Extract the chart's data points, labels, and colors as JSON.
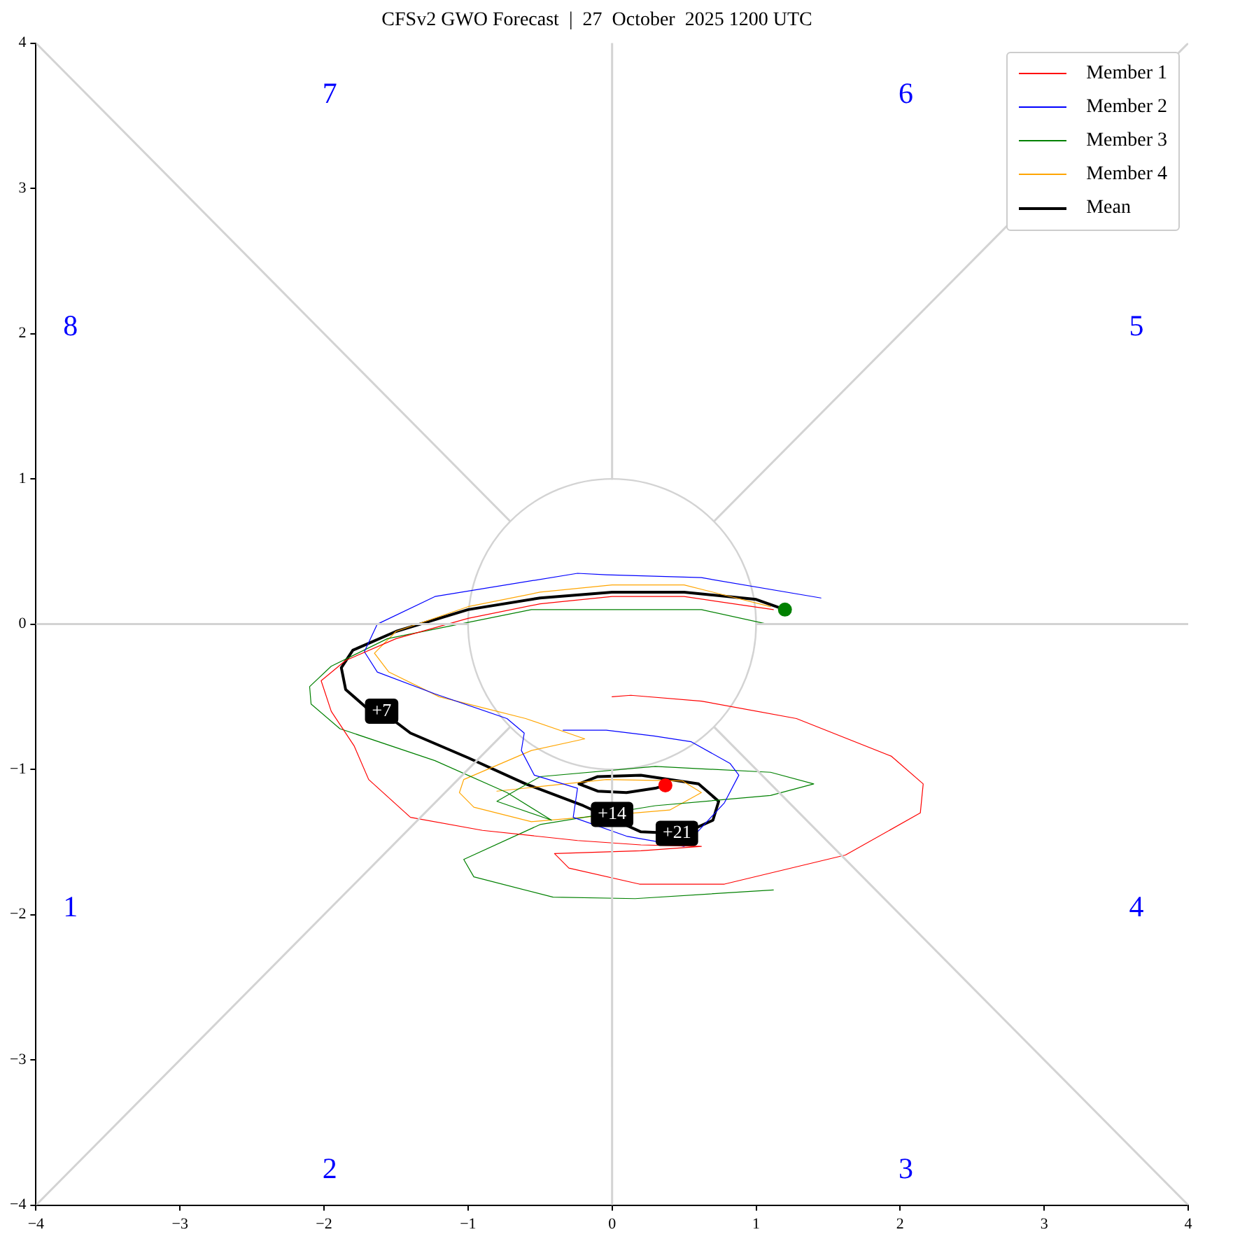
{
  "chart_data": {
    "type": "line",
    "title": "CFSv2 GWO Forecast  |  27  October  2025 1200 UTC",
    "xlim": [
      -4,
      4
    ],
    "ylim": [
      -4,
      4
    ],
    "xticks": [
      {
        "value": -4,
        "label": "−4"
      },
      {
        "value": -3,
        "label": "−3"
      },
      {
        "value": -2,
        "label": "−2"
      },
      {
        "value": -1,
        "label": "−1"
      },
      0,
      1,
      2,
      3,
      4
    ],
    "yticks": [
      {
        "value": -4,
        "label": "−4"
      },
      {
        "value": -3,
        "label": "−3"
      },
      {
        "value": -2,
        "label": "−2"
      },
      {
        "value": -1,
        "label": "−1"
      },
      0,
      1,
      2,
      3,
      4
    ],
    "legend": "top right",
    "marker": "none",
    "series": [
      {
        "color": "#d3d3d3",
        "x": [
          -4,
          -1
        ],
        "values": [
          0,
          0
        ]
      },
      {
        "color": "#d3d3d3",
        "x": [
          1,
          4
        ],
        "values": [
          0,
          0
        ]
      },
      {
        "color": "#d3d3d3",
        "x": [
          0,
          0
        ],
        "values": [
          1,
          4
        ]
      },
      {
        "color": "#d3d3d3",
        "x": [
          0,
          0
        ],
        "values": [
          -1,
          -4
        ]
      },
      {
        "color": "#d3d3d3",
        "x": [
          -4,
          -0.71
        ],
        "values": [
          4,
          0.71
        ]
      },
      {
        "color": "#d3d3d3",
        "x": [
          0.71,
          4
        ],
        "values": [
          0.71,
          4
        ]
      },
      {
        "color": "#d3d3d3",
        "x": [
          -4,
          -0.71
        ],
        "values": [
          -4,
          -0.71
        ]
      },
      {
        "color": "#d3d3d3",
        "x": [
          0.71,
          4
        ],
        "values": [
          -0.71,
          -4
        ]
      },
      {
        "name": "Member 1",
        "color": "#ff0000",
        "x": [
          1.12,
          0.5,
          0,
          -0.5,
          -1,
          -1.5,
          -1.85,
          -2.02,
          -1.95,
          -1.79,
          -1.69,
          -1.4,
          -0.9,
          -0.24,
          0.2,
          0.62,
          0.2,
          -0.4,
          -0.3,
          0.19,
          0.78,
          1.62,
          2.14,
          2.16,
          1.94,
          1.28,
          0.62,
          0.13,
          0
        ],
        "values": [
          0.1,
          0.19,
          0.19,
          0.14,
          0.04,
          -0.1,
          -0.25,
          -0.39,
          -0.6,
          -0.84,
          -1.07,
          -1.33,
          -1.42,
          -1.49,
          -1.52,
          -1.53,
          -1.56,
          -1.58,
          -1.68,
          -1.79,
          -1.79,
          -1.59,
          -1.3,
          -1.1,
          -0.91,
          -0.65,
          -0.53,
          -0.49,
          -0.5
        ]
      },
      {
        "name": "Member 2",
        "color": "#0000ff",
        "x": [
          1.45,
          0.62,
          -0.04,
          -0.24,
          -1.23,
          -1.63,
          -1.72,
          -1.63,
          -1.23,
          -0.73,
          -0.61,
          -0.63,
          -0.54,
          -0.24,
          -0.27,
          0.1,
          0.5,
          0.78,
          0.88,
          0.82,
          0.55,
          0.29,
          -0.04,
          -0.34
        ],
        "values": [
          0.18,
          0.32,
          0.34,
          0.35,
          0.19,
          0,
          -0.19,
          -0.33,
          -0.48,
          -0.65,
          -0.75,
          -0.87,
          -1.04,
          -1.13,
          -1.33,
          -1.46,
          -1.53,
          -1.23,
          -1.04,
          -0.96,
          -0.81,
          -0.77,
          -0.73,
          -0.73
        ]
      },
      {
        "name": "Member 3",
        "color": "#008000",
        "x": [
          1.08,
          0.62,
          -0.04,
          -0.56,
          -1.56,
          -1.95,
          -2.1,
          -2.09,
          -1.89,
          -1.23,
          -0.73,
          -0.42,
          -0.8,
          -0.5,
          0.3,
          1.1,
          1.4,
          1.1,
          0.3,
          -0.5,
          -1.03,
          -0.96,
          -0.41,
          0.16,
          1.12
        ],
        "values": [
          0,
          0.1,
          0.1,
          0.1,
          -0.1,
          -0.29,
          -0.43,
          -0.55,
          -0.72,
          -0.94,
          -1.16,
          -1.35,
          -1.22,
          -1.05,
          -0.98,
          -1.02,
          -1.1,
          -1.18,
          -1.25,
          -1.38,
          -1.62,
          -1.74,
          -1.88,
          -1.89,
          -1.83
        ]
      },
      {
        "name": "Member 4",
        "color": "#ffa500",
        "x": [
          1.1,
          0.5,
          0,
          -0.5,
          -1,
          -1.5,
          -1.65,
          -1.55,
          -1.2,
          -0.6,
          -0.19,
          -0.56,
          -1.03,
          -1.06,
          -0.96,
          -0.56,
          0.4,
          0.62,
          0.49,
          -0.04,
          -0.8
        ],
        "values": [
          0.12,
          0.27,
          0.27,
          0.22,
          0.12,
          -0.05,
          -0.2,
          -0.33,
          -0.5,
          -0.65,
          -0.79,
          -0.87,
          -1.07,
          -1.16,
          -1.26,
          -1.36,
          -1.28,
          -1.16,
          -1.08,
          -1.07,
          -1.15
        ]
      },
      {
        "name": "Mean",
        "color": "#000000",
        "x": [
          1.2,
          1.0,
          0.5,
          0,
          -0.5,
          -1.0,
          -1.5,
          -1.8,
          -1.88,
          -1.85,
          -1.7,
          -1.6,
          -1.4,
          -1.0,
          -0.6,
          -0.2,
          0.2,
          0.45,
          0.5,
          0.7,
          0.74,
          0.6,
          0.2,
          -0.1,
          -0.23,
          -0.1,
          0.1,
          0.3,
          0.37
        ],
        "values": [
          0.1,
          0.17,
          0.22,
          0.22,
          0.18,
          0.1,
          -0.05,
          -0.18,
          -0.3,
          -0.45,
          -0.58,
          -0.6,
          -0.75,
          -0.92,
          -1.1,
          -1.25,
          -1.43,
          -1.44,
          -1.44,
          -1.35,
          -1.22,
          -1.1,
          -1.04,
          -1.05,
          -1.1,
          -1.15,
          -1.16,
          -1.13,
          -1.11
        ]
      },
      {
        "type": "scatter",
        "marker": "circle",
        "color": "#008000",
        "x": [
          1.2
        ],
        "values": [
          0.1
        ]
      },
      {
        "type": "scatter",
        "marker": "circle",
        "color": "#ff0000",
        "x": [
          0.37
        ],
        "values": [
          -1.11
        ]
      }
    ],
    "annotations": [
      {
        "text": "+7",
        "x": -1.6,
        "y": -0.6
      },
      {
        "text": "+14",
        "x": 0,
        "y": -1.31
      },
      {
        "text": "+21",
        "x": 0.45,
        "y": -1.44
      },
      "1",
      "2",
      "3",
      "4",
      "5",
      "6",
      "7",
      "8"
    ]
  }
}
